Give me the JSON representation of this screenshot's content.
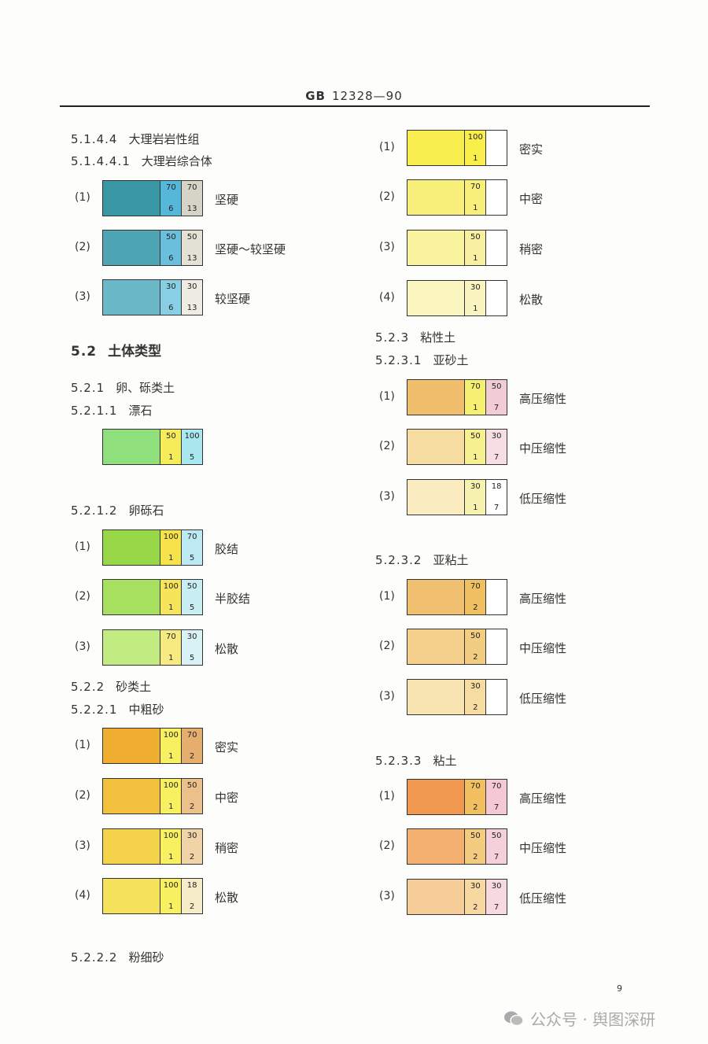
{
  "header": {
    "code": "GB",
    "number": "12328—90"
  },
  "page_number": "9",
  "watermark": {
    "icon": "wechat-icon",
    "text": "公众号 · 舆图深研"
  },
  "headings": [
    {
      "num": "5.1.4.4",
      "text": "大理岩岩性组"
    },
    {
      "num": "5.1.4.4.1",
      "text": "大理岩综合体"
    },
    {
      "num": "5.2",
      "text": "土体类型"
    },
    {
      "num": "5.2.1",
      "text": "卵、砾类土"
    },
    {
      "num": "5.2.1.1",
      "text": "漂石"
    },
    {
      "num": "5.2.1.2",
      "text": "卵砾石"
    },
    {
      "num": "5.2.2",
      "text": "砂类土"
    },
    {
      "num": "5.2.2.1",
      "text": "中粗砂"
    },
    {
      "num": "5.2.2.2",
      "text": "粉细砂"
    },
    {
      "num": "5.2.3",
      "text": "粘性土"
    },
    {
      "num": "5.2.3.1",
      "text": "亚砂土"
    },
    {
      "num": "5.2.3.2",
      "text": "亚粘土"
    },
    {
      "num": "5.2.3.3",
      "text": "粘土"
    }
  ],
  "swatch_groups": [
    {
      "group": "大理岩综合体",
      "items": [
        {
          "index": "(1)",
          "label": "坚硬",
          "mid": [
            "70",
            "6"
          ],
          "right": [
            "70",
            "13"
          ],
          "colors": [
            "#3a98a6",
            "#55b8d8",
            "#d6d4c6"
          ]
        },
        {
          "index": "(2)",
          "label": "坚硬～较坚硬",
          "mid": [
            "50",
            "6"
          ],
          "right": [
            "50",
            "13"
          ],
          "colors": [
            "#4ea6b4",
            "#6ac0dc",
            "#e4e2d6"
          ]
        },
        {
          "index": "(3)",
          "label": "较坚硬",
          "mid": [
            "30",
            "6"
          ],
          "right": [
            "30",
            "13"
          ],
          "colors": [
            "#6ab8c8",
            "#88cfe3",
            "#efede3"
          ]
        }
      ]
    },
    {
      "group": "漂石",
      "items": [
        {
          "index": "",
          "label": "",
          "mid": [
            "50",
            "1"
          ],
          "right": [
            "100",
            "5"
          ],
          "colors": [
            "#8fe07c",
            "#f6ec5a",
            "#a8e8ee"
          ]
        }
      ]
    },
    {
      "group": "卵砾石",
      "items": [
        {
          "index": "(1)",
          "label": "胶结",
          "mid": [
            "100",
            "1"
          ],
          "right": [
            "70",
            "5"
          ],
          "colors": [
            "#98d848",
            "#f6e24a",
            "#bde9f2"
          ]
        },
        {
          "index": "(2)",
          "label": "半胶结",
          "mid": [
            "100",
            "1"
          ],
          "right": [
            "50",
            "5"
          ],
          "colors": [
            "#a6e05e",
            "#f6e45a",
            "#c8eef4"
          ]
        },
        {
          "index": "(3)",
          "label": "松散",
          "mid": [
            "70",
            "1"
          ],
          "right": [
            "30",
            "5"
          ],
          "colors": [
            "#c2ec82",
            "#f6ea80",
            "#d8f2f6"
          ]
        }
      ]
    },
    {
      "group": "中粗砂",
      "items": [
        {
          "index": "(1)",
          "label": "密实",
          "mid": [
            "100",
            "1"
          ],
          "right": [
            "70",
            "2"
          ],
          "colors": [
            "#f0ae30",
            "#f8f060",
            "#e6ae6c"
          ]
        },
        {
          "index": "(2)",
          "label": "中密",
          "mid": [
            "100",
            "1"
          ],
          "right": [
            "50",
            "2"
          ],
          "colors": [
            "#f2c03c",
            "#f8f060",
            "#ecc08a"
          ]
        },
        {
          "index": "(3)",
          "label": "稍密",
          "mid": [
            "100",
            "1"
          ],
          "right": [
            "30",
            "2"
          ],
          "colors": [
            "#f4d24a",
            "#f8f060",
            "#f0d4a8"
          ]
        },
        {
          "index": "(4)",
          "label": "松散",
          "mid": [
            "100",
            "1"
          ],
          "right": [
            "18",
            "2"
          ],
          "colors": [
            "#f6e25a",
            "#f8f060",
            "#f6ecc8"
          ]
        }
      ]
    },
    {
      "group": "粉细砂",
      "items": [
        {
          "index": "(1)",
          "label": "密实",
          "mid": [
            "100",
            "1"
          ],
          "right": [
            "",
            ""
          ],
          "colors": [
            "#f8ee50",
            "#f9ee4a",
            "#ffffff"
          ]
        },
        {
          "index": "(2)",
          "label": "中密",
          "mid": [
            "70",
            "1"
          ],
          "right": [
            "",
            ""
          ],
          "colors": [
            "#f8f07a",
            "#f8ee7a",
            "#ffffff"
          ]
        },
        {
          "index": "(3)",
          "label": "稍密",
          "mid": [
            "50",
            "1"
          ],
          "right": [
            "",
            ""
          ],
          "colors": [
            "#faf3a0",
            "#f8f0a0",
            "#ffffff"
          ]
        },
        {
          "index": "(4)",
          "label": "松散",
          "mid": [
            "30",
            "1"
          ],
          "right": [
            "",
            ""
          ],
          "colors": [
            "#fbf6c0",
            "#faf4c0",
            "#ffffff"
          ]
        }
      ]
    },
    {
      "group": "亚砂土",
      "items": [
        {
          "index": "(1)",
          "label": "高压缩性",
          "mid": [
            "70",
            "1"
          ],
          "right": [
            "50",
            "7"
          ],
          "colors": [
            "#f0be6c",
            "#f6f070",
            "#f2ccd4"
          ]
        },
        {
          "index": "(2)",
          "label": "中压缩性",
          "mid": [
            "50",
            "1"
          ],
          "right": [
            "30",
            "7"
          ],
          "colors": [
            "#f6dca0",
            "#f6f090",
            "#f6dee2"
          ]
        },
        {
          "index": "(3)",
          "label": "低压缩性",
          "mid": [
            "30",
            "1"
          ],
          "right": [
            "18",
            "7"
          ],
          "colors": [
            "#faecc0",
            "#f8f2b0",
            "#ffffff"
          ]
        }
      ]
    },
    {
      "group": "亚粘土",
      "items": [
        {
          "index": "(1)",
          "label": "高压缩性",
          "mid": [
            "70",
            "2"
          ],
          "right": [
            "",
            ""
          ],
          "colors": [
            "#f0c070",
            "#f0c060",
            "#ffffff"
          ]
        },
        {
          "index": "(2)",
          "label": "中压缩性",
          "mid": [
            "50",
            "2"
          ],
          "right": [
            "",
            ""
          ],
          "colors": [
            "#f4d08c",
            "#f2cc80",
            "#ffffff"
          ]
        },
        {
          "index": "(3)",
          "label": "低压缩性",
          "mid": [
            "30",
            "2"
          ],
          "right": [
            "",
            ""
          ],
          "colors": [
            "#f8e4b0",
            "#f6dca0",
            "#ffffff"
          ]
        }
      ]
    },
    {
      "group": "粘土",
      "items": [
        {
          "index": "(1)",
          "label": "高压缩性",
          "mid": [
            "70",
            "2"
          ],
          "right": [
            "70",
            "7"
          ],
          "colors": [
            "#f09850",
            "#f2c060",
            "#f4c8d4"
          ]
        },
        {
          "index": "(2)",
          "label": "中压缩性",
          "mid": [
            "50",
            "2"
          ],
          "right": [
            "50",
            "7"
          ],
          "colors": [
            "#f4b070",
            "#f4cc80",
            "#f4d0da"
          ]
        },
        {
          "index": "(3)",
          "label": "低压缩性",
          "mid": [
            "30",
            "2"
          ],
          "right": [
            "30",
            "7"
          ],
          "colors": [
            "#f6cc98",
            "#f6d8a0",
            "#f6dae0"
          ]
        }
      ]
    }
  ]
}
